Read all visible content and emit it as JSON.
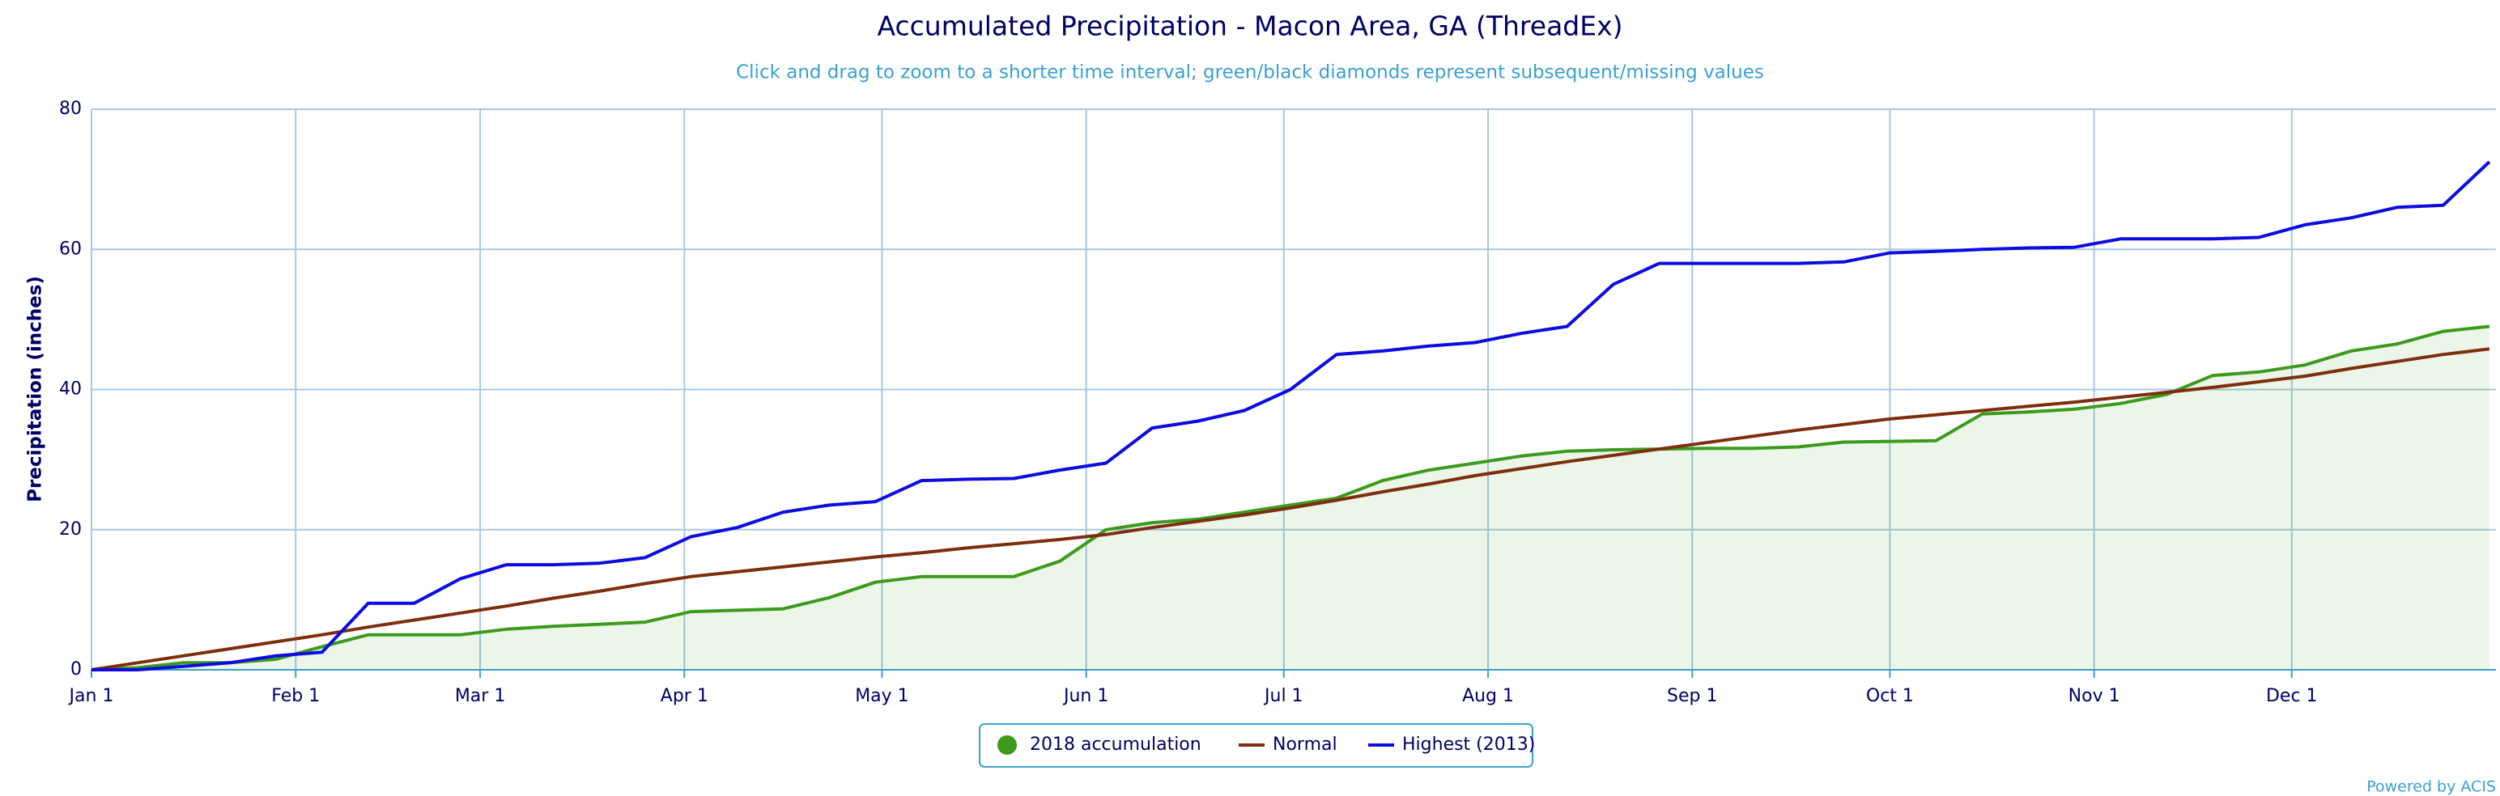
{
  "chart_data": {
    "type": "line",
    "title": "Accumulated Precipitation - Macon Area, GA (ThreadEx)",
    "subtitle": "Click and drag to zoom to a shorter time interval; green/black diamonds represent subsequent/missing values",
    "y_label": "Precipitation (inches)",
    "credit": "Powered by ACIS",
    "x": [
      0,
      7,
      14,
      21,
      28,
      35,
      42,
      49,
      56,
      63,
      70,
      77,
      84,
      91,
      98,
      105,
      112,
      119,
      126,
      133,
      140,
      147,
      154,
      161,
      168,
      175,
      182,
      189,
      196,
      203,
      210,
      217,
      224,
      231,
      238,
      245,
      252,
      259,
      266,
      273,
      280,
      287,
      294,
      301,
      308,
      315,
      322,
      329,
      336,
      343,
      350,
      357,
      364
    ],
    "series": [
      {
        "name": "2018 accumulation",
        "color": "#3c9a1c",
        "area": true,
        "marker": "circle",
        "values": [
          0,
          0.3,
          1,
          1,
          1.5,
          3.3,
          5,
          5,
          5,
          5.8,
          6.2,
          6.5,
          6.8,
          8.3,
          8.5,
          8.7,
          10.3,
          12.5,
          13.3,
          13.3,
          13.3,
          15.5,
          20,
          21,
          21.5,
          22.5,
          23.5,
          24.5,
          27,
          28.5,
          29.5,
          30.5,
          31.2,
          31.4,
          31.5,
          31.6,
          31.6,
          31.8,
          32.5,
          32.6,
          32.7,
          36.5,
          36.8,
          37.2,
          38,
          39.3,
          42,
          42.5,
          43.5,
          45.5,
          46.5,
          48.3,
          49
        ]
      },
      {
        "name": "Normal",
        "color": "#7d2e0e",
        "area": false,
        "marker": "line",
        "values": [
          0,
          1,
          2,
          3,
          4,
          5,
          6.1,
          7.1,
          8.1,
          9.1,
          10.2,
          11.2,
          12.3,
          13.3,
          14,
          14.7,
          15.4,
          16.1,
          16.7,
          17.4,
          18,
          18.6,
          19.3,
          20.3,
          21.2,
          22.1,
          23.1,
          24.2,
          25.4,
          26.5,
          27.7,
          28.7,
          29.7,
          30.6,
          31.5,
          32.4,
          33.3,
          34.2,
          35,
          35.8,
          36.4,
          37,
          37.6,
          38.2,
          38.9,
          39.6,
          40.3,
          41.1,
          41.9,
          43,
          44,
          45,
          45.8
        ]
      },
      {
        "name": "Highest (2013)",
        "color": "#0c0ce0",
        "area": false,
        "marker": "line",
        "values": [
          0,
          0,
          0.5,
          1,
          2,
          2.5,
          9.5,
          9.5,
          13,
          15,
          15,
          15.2,
          16,
          19,
          20.3,
          22.5,
          23.5,
          24,
          27,
          27.2,
          27.3,
          28.5,
          29.5,
          34.5,
          35.5,
          37,
          40,
          45,
          45.5,
          46.2,
          46.7,
          48,
          49,
          55,
          58,
          58,
          58,
          58,
          58.2,
          59.5,
          59.7,
          60,
          60.2,
          60.3,
          61.5,
          61.5,
          61.5,
          61.7,
          63.5,
          64.5,
          66,
          66.3,
          72.5
        ]
      }
    ],
    "xlim": [
      0,
      365
    ],
    "xticks": [
      {
        "value": 0,
        "label": "Jan 1"
      },
      {
        "value": 31,
        "label": "Feb 1"
      },
      {
        "value": 59,
        "label": "Mar 1"
      },
      {
        "value": 90,
        "label": "Apr 1"
      },
      {
        "value": 120,
        "label": "May 1"
      },
      {
        "value": 151,
        "label": "Jun 1"
      },
      {
        "value": 181,
        "label": "Jul 1"
      },
      {
        "value": 212,
        "label": "Aug 1"
      },
      {
        "value": 243,
        "label": "Sep 1"
      },
      {
        "value": 273,
        "label": "Oct 1"
      },
      {
        "value": 304,
        "label": "Nov 1"
      },
      {
        "value": 334,
        "label": "Dec 1"
      }
    ],
    "ylim": [
      0,
      80
    ],
    "yticks": [
      0,
      20,
      40,
      60,
      80
    ],
    "grid": true,
    "legend": "bottom"
  }
}
